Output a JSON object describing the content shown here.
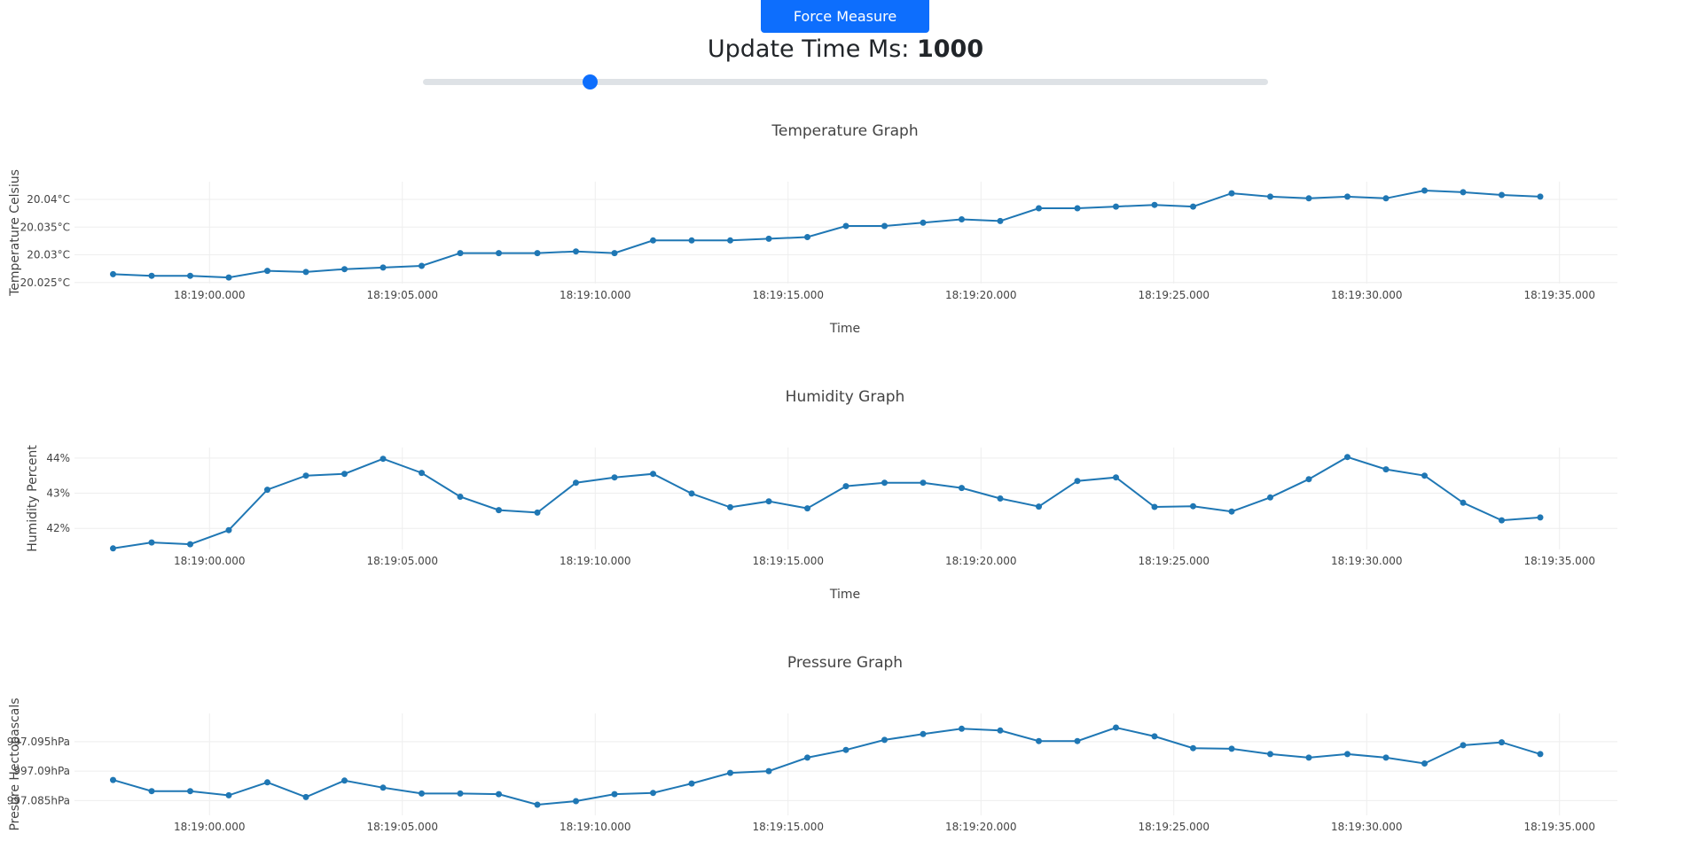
{
  "controls": {
    "force_button_label": "Force Measure",
    "update_label": "Update Time Ms: ",
    "update_value": "1000",
    "slider_fraction": 0.197
  },
  "chart_data": [
    {
      "type": "line",
      "title": "Temperature Graph",
      "xlabel": "Time",
      "ylabel": "Temperature Celsius",
      "x_start": "18:18:57.500",
      "x_step_seconds": 1,
      "x_range": [
        "18:18:56.500",
        "18:19:36.500"
      ],
      "y_range": [
        20.0248,
        20.0432
      ],
      "yticks": [
        20.025,
        20.03,
        20.035,
        20.04
      ],
      "ytick_labels": [
        "20.025°C",
        "20.03°C",
        "20.035°C",
        "20.04°C"
      ],
      "xticks": [
        "18:19:00.000",
        "18:19:05.000",
        "18:19:10.000",
        "18:19:15.000",
        "18:19:20.000",
        "18:19:25.000",
        "18:19:30.000",
        "18:19:35.000"
      ],
      "grid": true,
      "values": [
        20.0265,
        20.0262,
        20.0262,
        20.0259,
        20.0271,
        20.0269,
        20.0274,
        20.0277,
        20.028,
        20.0303,
        20.0303,
        20.0303,
        20.0306,
        20.0303,
        20.0326,
        20.0326,
        20.0326,
        20.0329,
        20.0332,
        20.0352,
        20.0352,
        20.0358,
        20.0364,
        20.0361,
        20.0384,
        20.0384,
        20.0387,
        20.039,
        20.0387,
        20.0411,
        20.0405,
        20.0402,
        20.0405,
        20.0402,
        20.0416,
        20.0413,
        20.0408,
        20.0405
      ]
    },
    {
      "type": "line",
      "title": "Humidity Graph",
      "xlabel": "Time",
      "ylabel": "Humidity Percent",
      "x_start": "18:18:57.500",
      "x_step_seconds": 1,
      "x_range": [
        "18:18:56.500",
        "18:19:36.500"
      ],
      "y_range": [
        41.4,
        44.3
      ],
      "yticks": [
        42,
        43,
        44
      ],
      "ytick_labels": [
        "42%",
        "43%",
        "44%"
      ],
      "xticks": [
        "18:19:00.000",
        "18:19:05.000",
        "18:19:10.000",
        "18:19:15.000",
        "18:19:20.000",
        "18:19:25.000",
        "18:19:30.000",
        "18:19:35.000"
      ],
      "grid": true,
      "values": [
        41.43,
        41.6,
        41.55,
        41.95,
        43.1,
        43.5,
        43.55,
        43.98,
        43.58,
        42.9,
        42.52,
        42.45,
        43.3,
        43.45,
        43.55,
        42.99,
        42.6,
        42.77,
        42.57,
        43.2,
        43.3,
        43.3,
        43.15,
        42.85,
        42.62,
        43.35,
        43.45,
        42.61,
        42.63,
        42.48,
        42.88,
        43.4,
        44.03,
        43.68,
        43.5,
        42.73,
        42.23,
        42.31
      ]
    },
    {
      "type": "line",
      "title": "Pressure Graph",
      "xlabel": "",
      "ylabel": "Presure Hectopascals",
      "x_start": "18:18:57.500",
      "x_step_seconds": 1,
      "x_range": [
        "18:18:56.500",
        "18:19:36.500"
      ],
      "y_range": [
        997.0825,
        997.0998
      ],
      "yticks": [
        997.085,
        997.09,
        997.095
      ],
      "ytick_labels": [
        "997.085hPa",
        "997.09hPa",
        "997.095hPa"
      ],
      "xticks": [
        "18:19:00.000",
        "18:19:05.000",
        "18:19:10.000",
        "18:19:15.000",
        "18:19:20.000",
        "18:19:25.000",
        "18:19:30.000",
        "18:19:35.000"
      ],
      "grid": true,
      "values": [
        997.0885,
        997.0866,
        997.0866,
        997.0859,
        997.0881,
        997.0856,
        997.0884,
        997.0872,
        997.0862,
        997.0862,
        997.0861,
        997.0843,
        997.0849,
        997.0861,
        997.0863,
        997.0879,
        997.0897,
        997.09,
        997.0923,
        997.0936,
        997.0953,
        997.0963,
        997.0972,
        997.0969,
        997.0951,
        997.0951,
        997.0974,
        997.0959,
        997.0939,
        997.0938,
        997.0929,
        997.0923,
        997.0929,
        997.0923,
        997.0913,
        997.0944,
        997.0949,
        997.0929
      ]
    }
  ]
}
